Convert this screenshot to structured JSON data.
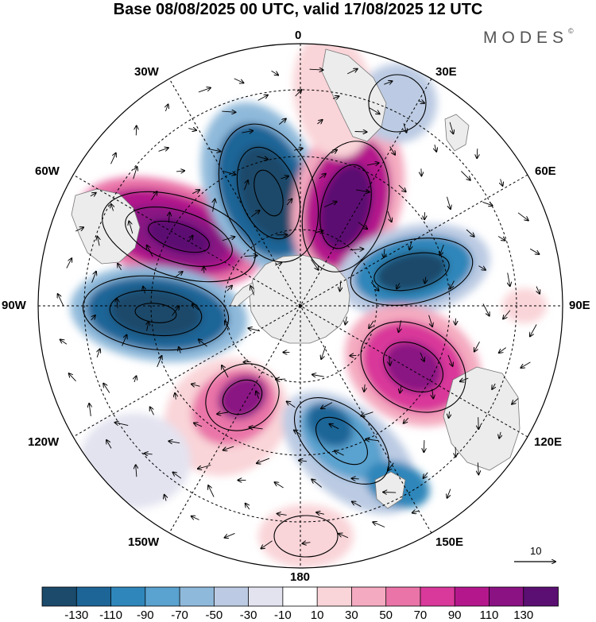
{
  "title": "Base 08/08/2025 00 UTC, valid 17/08/2025 12 UTC",
  "brand": {
    "name": "MODES",
    "mark": "©"
  },
  "longitude_labels": {
    "lon_0": "0",
    "lon_30e": "30E",
    "lon_60e": "60E",
    "lon_90e": "90E",
    "lon_120e": "120E",
    "lon_150e": "150E",
    "lon_180": "180",
    "lon_150w": "150W",
    "lon_120w": "120W",
    "lon_90w": "90W",
    "lon_60w": "60W",
    "lon_30w": "30W"
  },
  "vector_key": {
    "label": "10"
  },
  "colorbar": {
    "colors": [
      "#1b4a6b",
      "#1d6597",
      "#2f86ba",
      "#5aa2cf",
      "#8fb9da",
      "#bccbe3",
      "#e3e3f0",
      "#ffffff",
      "#f9d4d8",
      "#f4aac0",
      "#ea74a8",
      "#d9399a",
      "#b4178c",
      "#8a1283",
      "#5b0f72"
    ],
    "labels": [
      "-130",
      "-110",
      "-90",
      "-70",
      "-50",
      "-30",
      "-10",
      "10",
      "30",
      "50",
      "70",
      "90",
      "110",
      "130"
    ]
  },
  "colors": {
    "ocean": "#ffffff",
    "land": "#ececec",
    "coast": "#666666",
    "grid": "#000000"
  }
}
